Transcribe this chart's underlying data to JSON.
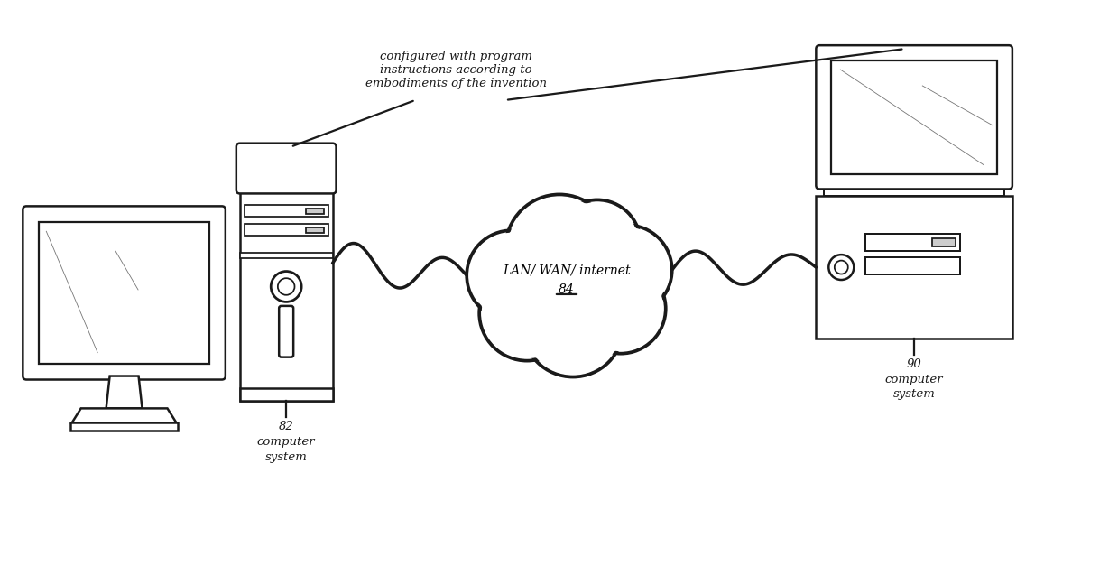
{
  "bg_color": "#ffffff",
  "lc": "#1a1a1a",
  "lw": 1.8,
  "annotation_text": "configured with program\ninstructions according to\nembodiments of the invention",
  "cloud_line1": "LAN/ WAN/ internet",
  "cloud_line2": "84",
  "label_82": [
    "82",
    "computer",
    "system"
  ],
  "label_90": [
    "90",
    "computer",
    "system"
  ],
  "font_size_annotation": 9.5,
  "font_size_label": 9.5,
  "font_size_cloud": 10
}
